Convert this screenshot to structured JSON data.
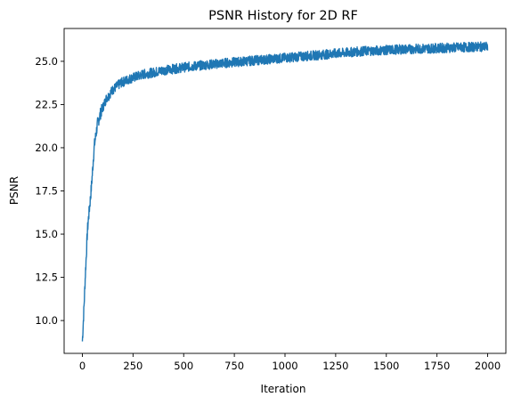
{
  "chart_data": {
    "type": "line",
    "title": "PSNR History for 2D RF",
    "xlabel": "Iteration",
    "ylabel": "PSNR",
    "xlim": [
      -90,
      2090
    ],
    "ylim": [
      8.1,
      26.9
    ],
    "xticks": [
      0,
      250,
      500,
      750,
      1000,
      1250,
      1500,
      1750,
      2000
    ],
    "xtick_labels": [
      "0",
      "250",
      "500",
      "750",
      "1000",
      "1250",
      "1500",
      "1750",
      "2000"
    ],
    "yticks": [
      10.0,
      12.5,
      15.0,
      17.5,
      20.0,
      22.5,
      25.0
    ],
    "ytick_labels": [
      "10.0",
      "12.5",
      "15.0",
      "17.5",
      "20.0",
      "22.5",
      "25.0"
    ],
    "grid": false,
    "series": [
      {
        "name": "PSNR",
        "color": "#1f77b4",
        "x": [
          0,
          5,
          10,
          15,
          20,
          25,
          30,
          35,
          40,
          45,
          50,
          55,
          60,
          65,
          70,
          75,
          80,
          90,
          100,
          110,
          120,
          130,
          140,
          150,
          160,
          175,
          190,
          200,
          225,
          250,
          275,
          300,
          325,
          350,
          375,
          400,
          425,
          450,
          475,
          500,
          550,
          600,
          650,
          700,
          750,
          800,
          850,
          900,
          950,
          1000,
          1050,
          1100,
          1150,
          1200,
          1250,
          1300,
          1350,
          1400,
          1450,
          1500,
          1550,
          1600,
          1650,
          1700,
          1750,
          1800,
          1850,
          1900,
          1950,
          2000
        ],
        "values": [
          8.8,
          10.0,
          11.3,
          12.7,
          13.9,
          15.2,
          15.9,
          16.5,
          17.1,
          17.8,
          18.6,
          19.5,
          20.2,
          20.6,
          21.0,
          21.4,
          21.6,
          22.0,
          22.3,
          22.6,
          22.9,
          23.0,
          23.2,
          23.35,
          23.45,
          23.6,
          23.75,
          23.8,
          23.95,
          24.05,
          24.15,
          24.25,
          24.3,
          24.35,
          24.42,
          24.48,
          24.52,
          24.56,
          24.6,
          24.65,
          24.72,
          24.78,
          24.84,
          24.9,
          24.95,
          25.0,
          25.05,
          25.1,
          25.15,
          25.2,
          25.25,
          25.3,
          25.35,
          25.4,
          25.45,
          25.5,
          25.55,
          25.6,
          25.62,
          25.65,
          25.68,
          25.7,
          25.72,
          25.74,
          25.76,
          25.78,
          25.8,
          25.82,
          25.84,
          25.85
        ]
      }
    ]
  }
}
